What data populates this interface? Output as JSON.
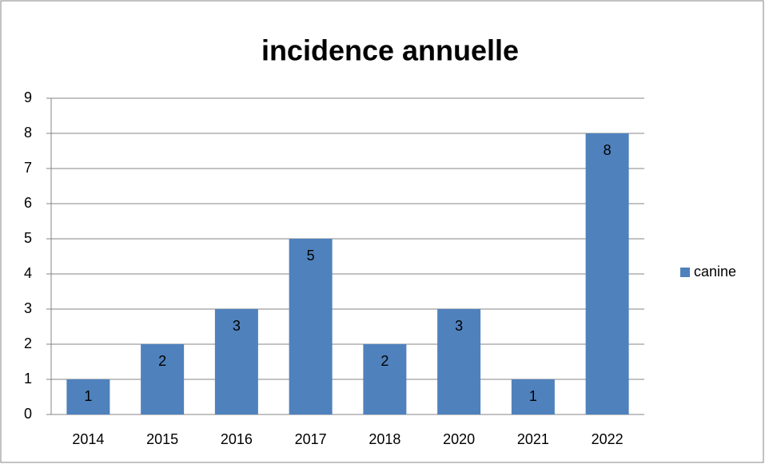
{
  "chart_data": {
    "type": "bar",
    "title": "incidence annuelle",
    "categories": [
      "2014",
      "2015",
      "2016",
      "2017",
      "2018",
      "2020",
      "2021",
      "2022"
    ],
    "series": [
      {
        "name": "canine",
        "color": "#4f81bd",
        "values": [
          1,
          2,
          3,
          5,
          2,
          3,
          1,
          8
        ]
      }
    ],
    "ylim": [
      0,
      9
    ],
    "yticks": [
      0,
      1,
      2,
      3,
      4,
      5,
      6,
      7,
      8,
      9
    ],
    "grid": true,
    "legend": "right"
  }
}
